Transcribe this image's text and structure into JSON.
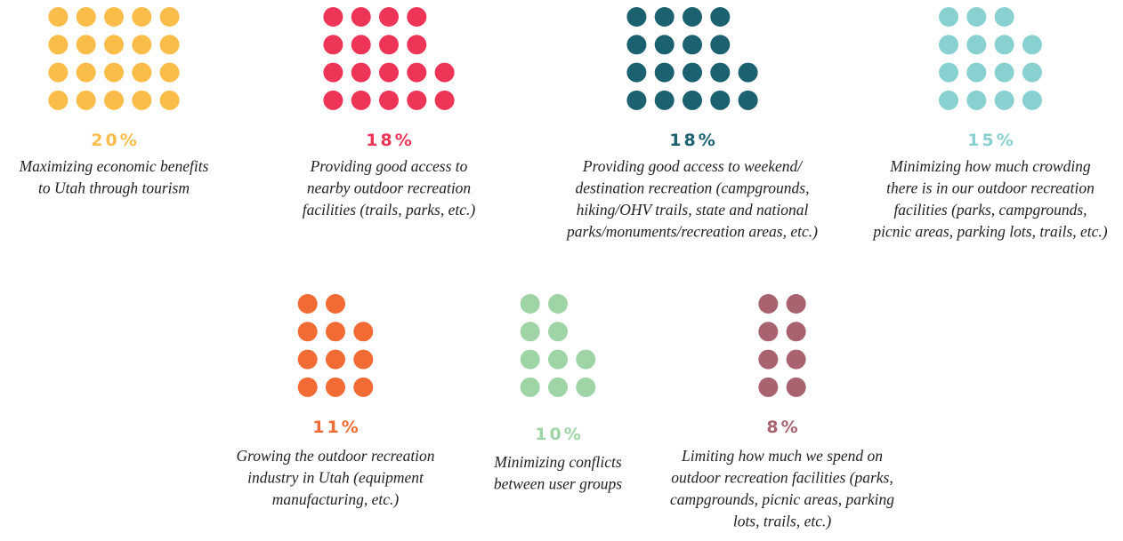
{
  "chart_data": {
    "type": "dots",
    "categories": [
      [
        "Maximizing economic benefits",
        "to Utah through tourism"
      ],
      [
        "Providing good access to",
        "nearby outdoor recreation",
        "facilities (trails, parks, etc.)"
      ],
      [
        "Providing good access to weekend/",
        "destination recreation (campgrounds,",
        "hiking/OHV trails, state and national",
        "parks/monuments/recreation areas, etc.)"
      ],
      [
        "Minimizing how much crowding",
        "there is in our outdoor recreation",
        "facilities (parks, campgrounds,",
        "picnic areas, parking lots, trails, etc.)"
      ],
      [
        "Growing the outdoor recreation",
        "industry in Utah (equipment",
        "manufacturing, etc.)"
      ],
      [
        "Minimizing conflicts",
        "between user groups"
      ],
      [
        "Limiting how much we spend on",
        "outdoor recreation facilities (parks,",
        "campgrounds, picnic areas, parking",
        "lots, trails, etc.)"
      ]
    ],
    "values": [
      20,
      18,
      18,
      15,
      11,
      10,
      8
    ],
    "value_labels": [
      "20%",
      "18%",
      "18%",
      "15%",
      "11%",
      "10%",
      "8%"
    ],
    "colors": [
      "#fbbd4a",
      "#ee3557",
      "#1b6170",
      "#89d1d1",
      "#f26b35",
      "#9ed4a6",
      "#a8636f"
    ]
  }
}
